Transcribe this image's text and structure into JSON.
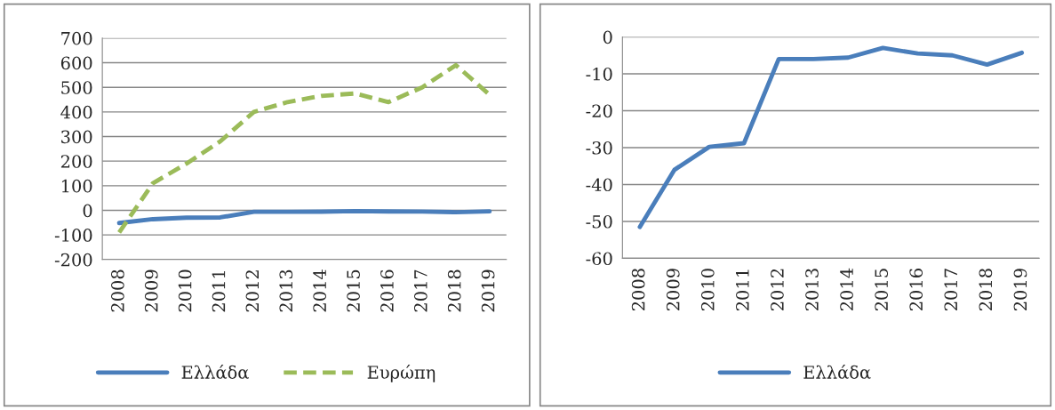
{
  "chart_data": [
    {
      "type": "line",
      "categories": [
        "2008",
        "2009",
        "2010",
        "2011",
        "2012",
        "2013",
        "2014",
        "2015",
        "2016",
        "2017",
        "2018",
        "2019"
      ],
      "series": [
        {
          "name": "Ελλάδα",
          "color": "#4a7ebb",
          "line_style": "solid",
          "values": [
            -51.5,
            -36,
            -29.8,
            -28.8,
            -6,
            -6,
            -5.6,
            -3,
            -4.5,
            -5,
            -7.5,
            -4.3
          ]
        },
        {
          "name": "Ευρώπη",
          "color": "#9bbb59",
          "line_style": "dashed",
          "values": [
            -90,
            110,
            190,
            280,
            400,
            440,
            465,
            475,
            440,
            500,
            590,
            470
          ]
        }
      ],
      "ylim": [
        -200,
        700
      ],
      "yticks": [
        -200,
        -100,
        0,
        100,
        200,
        300,
        400,
        500,
        600,
        700
      ],
      "grid": "y",
      "legend": "bottom",
      "marker": "none"
    },
    {
      "type": "line",
      "categories": [
        "2008",
        "2009",
        "2010",
        "2011",
        "2012",
        "2013",
        "2014",
        "2015",
        "2016",
        "2017",
        "2018",
        "2019"
      ],
      "series": [
        {
          "name": "Ελλάδα",
          "color": "#4a7ebb",
          "line_style": "solid",
          "values": [
            -51.5,
            -36,
            -29.8,
            -28.8,
            -6,
            -6,
            -5.6,
            -3,
            -4.5,
            -5,
            -7.5,
            -4.3
          ]
        }
      ],
      "ylim": [
        -60,
        0
      ],
      "yticks": [
        -60,
        -50,
        -40,
        -30,
        -20,
        -10,
        0
      ],
      "grid": "y",
      "legend": "bottom",
      "marker": "none"
    }
  ]
}
